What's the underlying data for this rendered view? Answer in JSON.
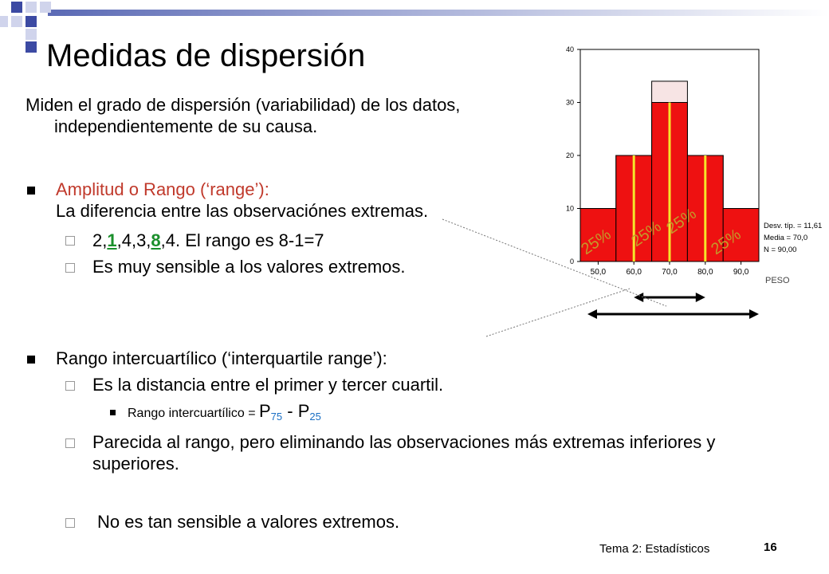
{
  "slide": {
    "title": "Medidas de dispersión",
    "intro": "Miden el grado de dispersión (variabilidad) de los datos, independientemente de su causa.",
    "footer": {
      "label": "Tema 2: Estadísticos",
      "page": "16"
    }
  },
  "range_section": {
    "heading": "Amplitud o Rango (‘range’):",
    "definition": "La diferencia entre las observaciónes extremas.",
    "example_parts": [
      "2,",
      "1",
      ",4,3,",
      "8",
      ",4. El rango es 8-1=7"
    ],
    "note": "Es muy sensible a los valores extremos."
  },
  "iqr_section": {
    "heading": "Rango intercuartílico (‘interquartile range’):",
    "definition": "Es la distancia entre el primer y tercer cuartil.",
    "formula_prefix": "Rango intercuartílico = ",
    "formula_p": "P",
    "formula_sub1": "75",
    "formula_minus": " - ",
    "formula_sub2": "25",
    "similar": "Parecida al rango, pero eliminando las observaciones más extremas inferiores y superiores.",
    "not_sensitive": "No es tan sensible a valores extremos."
  },
  "chart_data": {
    "type": "bar",
    "x": [
      50,
      60,
      70,
      80,
      90
    ],
    "x_tick_labels": [
      "50,0",
      "60,0",
      "70,0",
      "80,0",
      "90,0"
    ],
    "y_ticks": [
      "0",
      "10",
      "20",
      "30",
      "40"
    ],
    "ylim": [
      0,
      40
    ],
    "xlim": [
      45,
      95
    ],
    "bars_red": [
      10,
      20,
      30,
      20,
      10
    ],
    "bars_outline": [
      10,
      20,
      34,
      20,
      10
    ],
    "quartile_lines_x": [
      60,
      70,
      80
    ],
    "quartile_labels": [
      "25%",
      "25%",
      "25%",
      "25%"
    ],
    "xlabel": "PESO",
    "stats": [
      "Desv. típ. = 11,61",
      "Media = 70,0",
      "N = 90,00"
    ],
    "colors": {
      "bar": "#ee1111",
      "outline_fill": "#f7e4e4",
      "quartile": "#f5e52a",
      "label": "#c49a2a"
    }
  }
}
